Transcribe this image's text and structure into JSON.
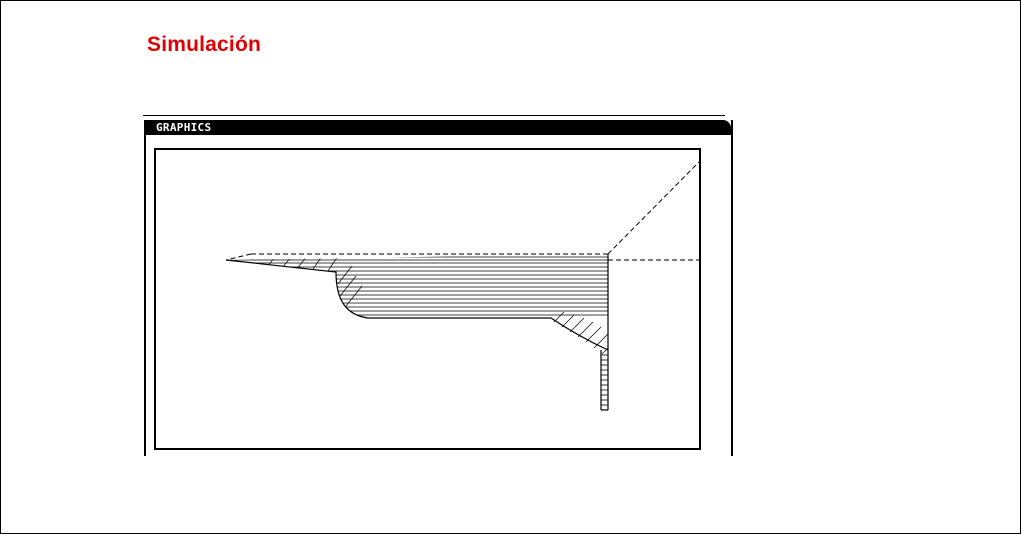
{
  "slide": {
    "title": "Simulación"
  },
  "window": {
    "title": "GRAPHICS"
  },
  "colors": {
    "title": "#e00000",
    "titlebar": "#000000",
    "line": "#000000",
    "background": "#ffffff"
  }
}
